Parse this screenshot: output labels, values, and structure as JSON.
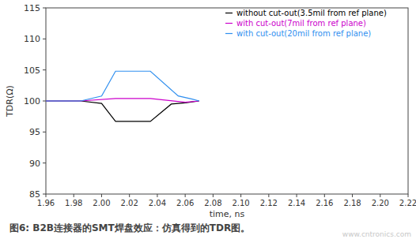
{
  "chart_data": {
    "type": "line",
    "title": "图6: B2B连接器的SMT焊盘效应：仿真得到的TDR图。",
    "x_label": "time, ns",
    "y_label": "TDR(Ω)",
    "annotations": [
      "www.cntronics.com"
    ],
    "xlim": [
      1.96,
      2.22
    ],
    "ylim": [
      85,
      115
    ],
    "xticks": [
      1.96,
      1.98,
      {
        "value": 2,
        "label": "2.00"
      },
      2.02,
      2.04,
      2.06,
      2.08,
      {
        "value": 2.1,
        "label": "2.10"
      },
      2.12,
      2.14,
      2.16,
      2.18,
      {
        "value": 2.2,
        "label": "2.20"
      },
      2.22
    ],
    "yticks": [
      85,
      90,
      95,
      100,
      105,
      110,
      115
    ],
    "grid": false,
    "legend": "upper right",
    "series": [
      {
        "name": "without cut-out(3.5mil from ref plane)",
        "color": "#000000",
        "x": [
          1.96,
          1.985,
          2.0,
          2.01,
          2.035,
          2.05,
          2.06,
          2.07
        ],
        "values": [
          100,
          100,
          99.6,
          96.7,
          96.7,
          99.5,
          99.7,
          100
        ]
      },
      {
        "name": "with cut-out(7mil from ref plane)",
        "color": "#cc00cc",
        "x": [
          1.96,
          1.985,
          2.01,
          2.035,
          2.06,
          2.07
        ],
        "values": [
          100,
          100,
          100.4,
          100.4,
          99.8,
          100
        ]
      },
      {
        "name": "with cut-out(20mil from ref plane)",
        "color": "#2f8fef",
        "x": [
          1.96,
          1.985,
          2.0,
          2.01,
          2.035,
          2.055,
          2.065,
          2.07
        ],
        "values": [
          100,
          100,
          100.8,
          104.8,
          104.8,
          100.8,
          100.3,
          100
        ]
      }
    ]
  }
}
